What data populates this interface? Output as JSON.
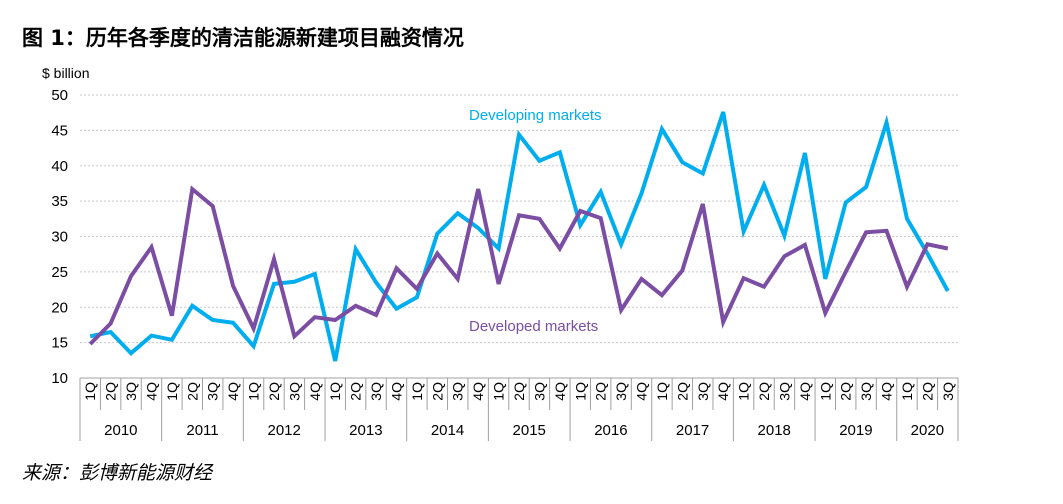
{
  "header": {
    "title": "图 1：历年各季度的清洁能源新建项目融资情况"
  },
  "footer": {
    "source": "来源：彭博新能源财经"
  },
  "chart_data": {
    "type": "line",
    "ylabel": "$ billion",
    "ylim": [
      10,
      50
    ],
    "yticks": [
      10,
      15,
      20,
      25,
      30,
      35,
      40,
      45,
      50
    ],
    "grid": true,
    "quarters": [
      "1Q",
      "2Q",
      "3Q",
      "4Q"
    ],
    "years": [
      "2010",
      "2011",
      "2012",
      "2013",
      "2014",
      "2015",
      "2016",
      "2017",
      "2018",
      "2019",
      "2020"
    ],
    "x": [
      "1Q 2010",
      "2Q 2010",
      "3Q 2010",
      "4Q 2010",
      "1Q 2011",
      "2Q 2011",
      "3Q 2011",
      "4Q 2011",
      "1Q 2012",
      "2Q 2012",
      "3Q 2012",
      "4Q 2012",
      "1Q 2013",
      "2Q 2013",
      "3Q 2013",
      "4Q 2013",
      "1Q 2014",
      "2Q 2014",
      "3Q 2014",
      "4Q 2014",
      "1Q 2015",
      "2Q 2015",
      "3Q 2015",
      "4Q 2015",
      "1Q 2016",
      "2Q 2016",
      "3Q 2016",
      "4Q 2016",
      "1Q 2017",
      "2Q 2017",
      "3Q 2017",
      "4Q 2017",
      "1Q 2018",
      "2Q 2018",
      "3Q 2018",
      "4Q 2018",
      "1Q 2019",
      "2Q 2019",
      "3Q 2019",
      "4Q 2019",
      "1Q 2020",
      "2Q 2020",
      "3Q 2020"
    ],
    "series": [
      {
        "name": "Developing markets",
        "color": "#00AEEF",
        "values": [
          15.9,
          16.5,
          13.5,
          16.0,
          15.4,
          20.2,
          18.2,
          17.8,
          14.5,
          23.3,
          23.6,
          24.7,
          12.4,
          28.2,
          23.5,
          19.8,
          21.4,
          30.4,
          33.3,
          31.2,
          28.3,
          44.4,
          40.7,
          41.9,
          31.6,
          36.3,
          28.9,
          36.1,
          45.2,
          40.5,
          38.9,
          47.6,
          30.7,
          37.3,
          30.1,
          41.8,
          24.0,
          34.8,
          37.0,
          46.1,
          32.5,
          27.6,
          22.3
        ]
      },
      {
        "name": "Developed markets",
        "color": "#7B4EA3",
        "values": [
          14.8,
          17.7,
          24.4,
          28.5,
          18.8,
          36.7,
          34.3,
          23.0,
          17.0,
          26.8,
          15.9,
          18.6,
          18.2,
          20.2,
          18.9,
          25.5,
          22.6,
          27.6,
          24.0,
          36.7,
          23.3,
          33.0,
          32.5,
          28.3,
          33.6,
          32.6,
          19.6,
          24.0,
          21.7,
          25.2,
          34.6,
          17.9,
          24.1,
          22.9,
          27.2,
          28.8,
          19.2,
          25.0,
          30.6,
          30.8,
          22.9,
          28.9,
          28.3
        ]
      }
    ]
  }
}
